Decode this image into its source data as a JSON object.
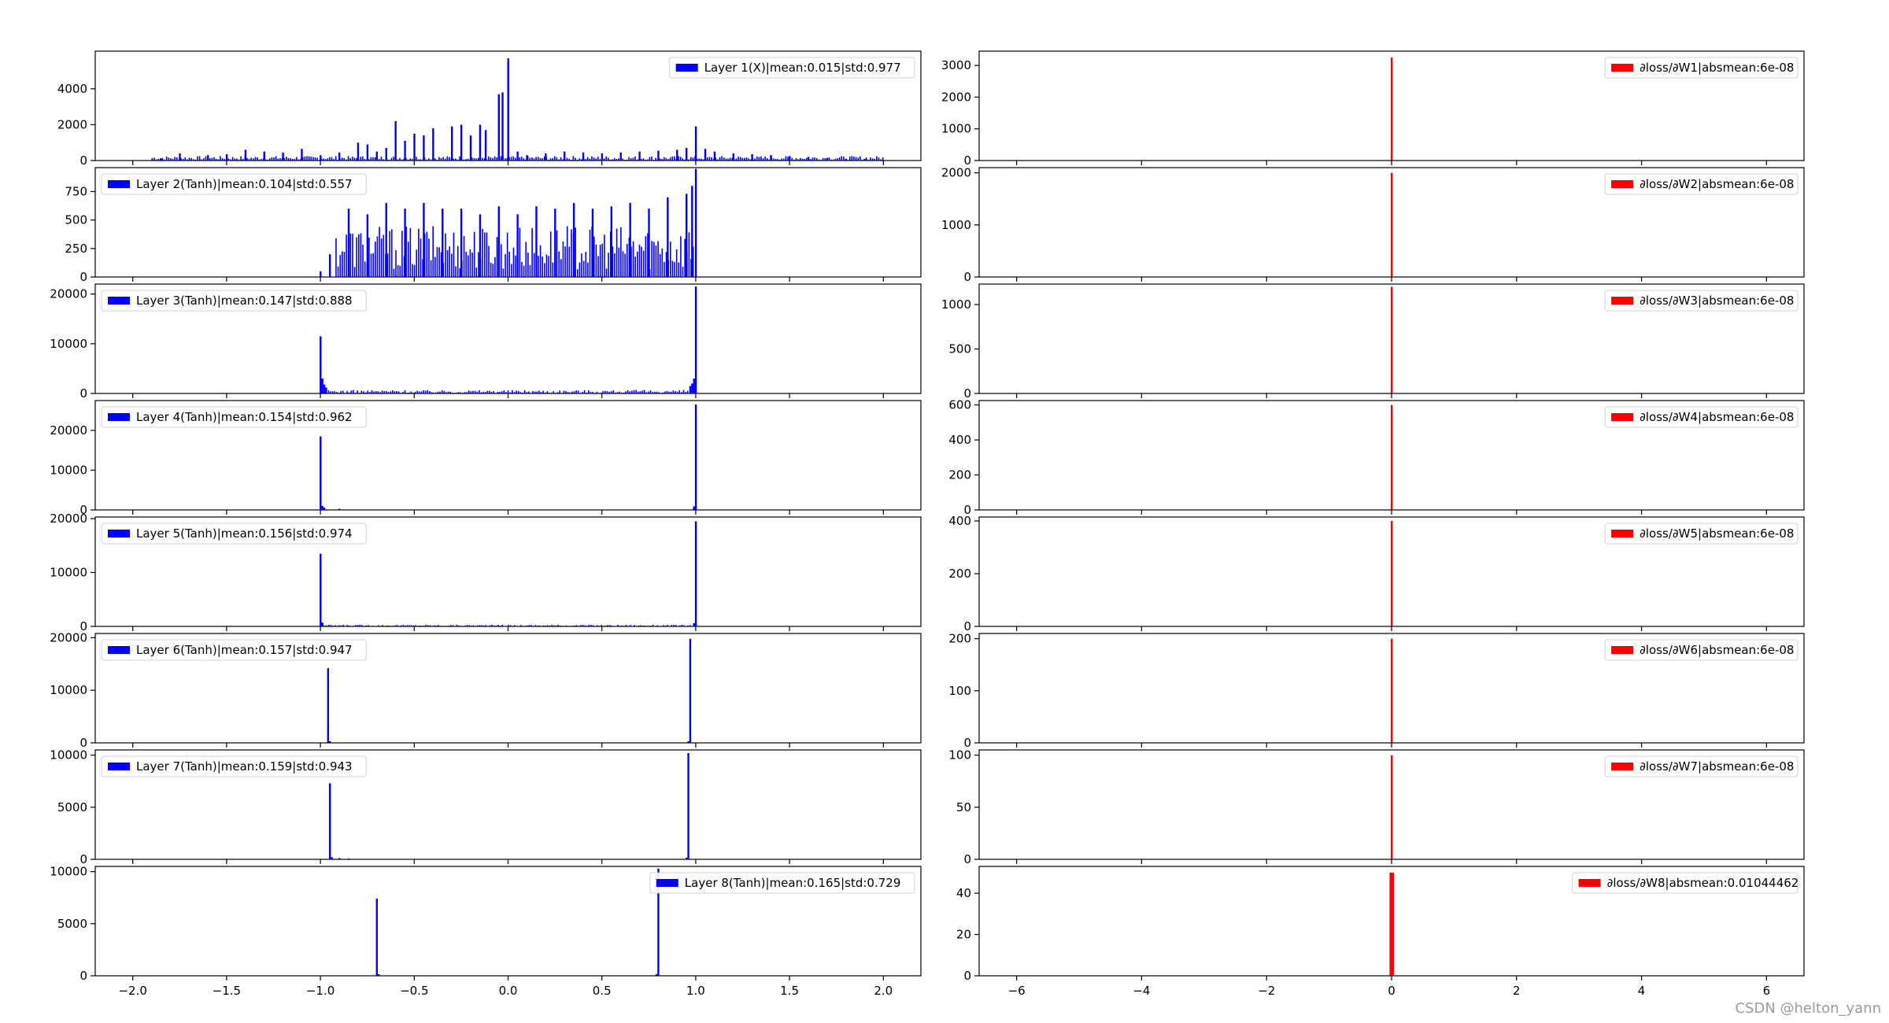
{
  "watermark": "CSDN @helton_yann",
  "colors": {
    "activation": "#0000ff",
    "gradient": "#ff0000",
    "axes": "#000000",
    "legend_border": "#cccccc"
  },
  "chart_data": [
    {
      "type": "bar",
      "panel": "left",
      "row": 0,
      "legend": "Layer 1(X)|mean:0.015|std:0.977",
      "legend_loc": "upper right",
      "xlim": [
        -2.2,
        2.2
      ],
      "ylim": [
        0,
        6100
      ],
      "yticks": [
        0,
        2000,
        4000
      ],
      "spikes": [
        [
          -1.85,
          100
        ],
        [
          -1.75,
          400
        ],
        [
          -1.6,
          300
        ],
        [
          -1.5,
          350
        ],
        [
          -1.4,
          600
        ],
        [
          -1.3,
          500
        ],
        [
          -1.2,
          450
        ],
        [
          -1.1,
          650
        ],
        [
          -1.0,
          300
        ],
        [
          -0.9,
          450
        ],
        [
          -0.8,
          1000
        ],
        [
          -0.75,
          900
        ],
        [
          -0.7,
          500
        ],
        [
          -0.65,
          700
        ],
        [
          -0.6,
          2200
        ],
        [
          -0.55,
          1100
        ],
        [
          -0.5,
          1500
        ],
        [
          -0.45,
          1400
        ],
        [
          -0.4,
          1800
        ],
        [
          -0.3,
          1900
        ],
        [
          -0.25,
          2000
        ],
        [
          -0.2,
          1400
        ],
        [
          -0.15,
          2000
        ],
        [
          -0.12,
          1700
        ],
        [
          -0.05,
          3700
        ],
        [
          -0.03,
          3800
        ],
        [
          0.0,
          5700
        ],
        [
          0.05,
          500
        ],
        [
          0.1,
          300
        ],
        [
          0.2,
          400
        ],
        [
          0.3,
          500
        ],
        [
          0.4,
          450
        ],
        [
          0.5,
          400
        ],
        [
          0.6,
          450
        ],
        [
          0.7,
          500
        ],
        [
          0.8,
          550
        ],
        [
          0.9,
          600
        ],
        [
          0.95,
          700
        ],
        [
          1.0,
          1900
        ],
        [
          1.05,
          650
        ],
        [
          1.1,
          500
        ],
        [
          1.2,
          400
        ],
        [
          1.3,
          350
        ],
        [
          1.4,
          300
        ],
        [
          1.5,
          250
        ],
        [
          1.6,
          200
        ],
        [
          1.7,
          150
        ],
        [
          1.8,
          100
        ],
        [
          1.9,
          80
        ]
      ],
      "noise": {
        "from": -1.9,
        "to": 2.0,
        "level": 250
      }
    },
    {
      "type": "bar",
      "panel": "left",
      "row": 1,
      "legend": "Layer 2(Tanh)|mean:0.104|std:0.557",
      "legend_loc": "upper left",
      "xlim": [
        -2.2,
        2.2
      ],
      "ylim": [
        0,
        960
      ],
      "yticks": [
        0,
        250,
        500,
        750
      ],
      "spikes": [
        [
          -1.0,
          50
        ],
        [
          -0.95,
          200
        ],
        [
          -0.85,
          600
        ],
        [
          -0.75,
          550
        ],
        [
          -0.65,
          650
        ],
        [
          -0.55,
          600
        ],
        [
          -0.45,
          650
        ],
        [
          -0.35,
          600
        ],
        [
          -0.25,
          600
        ],
        [
          -0.15,
          550
        ],
        [
          -0.05,
          620
        ],
        [
          0.05,
          550
        ],
        [
          0.15,
          620
        ],
        [
          0.25,
          600
        ],
        [
          0.35,
          650
        ],
        [
          0.45,
          600
        ],
        [
          0.55,
          620
        ],
        [
          0.65,
          650
        ],
        [
          0.75,
          600
        ],
        [
          0.85,
          700
        ],
        [
          0.95,
          730
        ],
        [
          0.98,
          800
        ],
        [
          1.0,
          950
        ]
      ],
      "noise": {
        "from": -0.92,
        "to": 0.99,
        "level": 450
      }
    },
    {
      "type": "bar",
      "panel": "left",
      "row": 2,
      "legend": "Layer 3(Tanh)|mean:0.147|std:0.888",
      "legend_loc": "upper left",
      "xlim": [
        -2.2,
        2.2
      ],
      "ylim": [
        0,
        22000
      ],
      "yticks": [
        0,
        10000,
        20000
      ],
      "spikes": [
        [
          -1.0,
          11500
        ],
        [
          -0.99,
          3000
        ],
        [
          -0.98,
          1800
        ],
        [
          -0.97,
          1200
        ],
        [
          0.97,
          1500
        ],
        [
          0.98,
          2000
        ],
        [
          0.99,
          3000
        ],
        [
          1.0,
          21500
        ]
      ],
      "noise": {
        "from": -0.96,
        "to": 0.96,
        "level": 700
      }
    },
    {
      "type": "bar",
      "panel": "left",
      "row": 3,
      "legend": "Layer 4(Tanh)|mean:0.154|std:0.962",
      "legend_loc": "upper left",
      "xlim": [
        -2.2,
        2.2
      ],
      "ylim": [
        0,
        27500
      ],
      "yticks": [
        0,
        10000,
        20000
      ],
      "spikes": [
        [
          -1.0,
          18500
        ],
        [
          -0.99,
          1000
        ],
        [
          -0.98,
          600
        ],
        [
          -0.9,
          300
        ],
        [
          0.99,
          900
        ],
        [
          1.0,
          26500
        ]
      ],
      "noise": {
        "from": -0.98,
        "to": 0.98,
        "level": 60
      }
    },
    {
      "type": "bar",
      "panel": "left",
      "row": 4,
      "legend": "Layer 5(Tanh)|mean:0.156|std:0.974",
      "legend_loc": "upper left",
      "xlim": [
        -2.2,
        2.2
      ],
      "ylim": [
        0,
        20300
      ],
      "yticks": [
        0,
        10000,
        20000
      ],
      "spikes": [
        [
          -1.0,
          13500
        ],
        [
          -0.99,
          700
        ],
        [
          0.99,
          600
        ],
        [
          1.0,
          19500
        ]
      ],
      "noise": {
        "from": -0.98,
        "to": 0.98,
        "level": 300
      }
    },
    {
      "type": "bar",
      "panel": "left",
      "row": 5,
      "legend": "Layer 6(Tanh)|mean:0.157|std:0.947",
      "legend_loc": "upper left",
      "xlim": [
        -2.2,
        2.2
      ],
      "ylim": [
        0,
        20800
      ],
      "yticks": [
        0,
        10000,
        20000
      ],
      "spikes": [
        [
          -0.96,
          14200
        ],
        [
          -0.95,
          300
        ],
        [
          0.96,
          300
        ],
        [
          0.97,
          19800
        ]
      ],
      "noise": {
        "from": -0.94,
        "to": 0.94,
        "level": 30
      }
    },
    {
      "type": "bar",
      "panel": "left",
      "row": 6,
      "legend": "Layer 7(Tanh)|mean:0.159|std:0.943",
      "legend_loc": "upper left",
      "xlim": [
        -2.2,
        2.2
      ],
      "ylim": [
        0,
        10500
      ],
      "yticks": [
        0,
        5000,
        10000
      ],
      "spikes": [
        [
          -0.95,
          7300
        ],
        [
          -0.94,
          200
        ],
        [
          -0.9,
          120
        ],
        [
          -0.85,
          80
        ],
        [
          0.95,
          150
        ],
        [
          0.96,
          10200
        ]
      ],
      "noise": {
        "from": -0.92,
        "to": 0.9,
        "level": 40
      }
    },
    {
      "type": "bar",
      "panel": "left",
      "row": 7,
      "legend": "Layer 8(Tanh)|mean:0.165|std:0.729",
      "legend_loc": "upper right",
      "xlim": [
        -2.2,
        2.2
      ],
      "ylim": [
        0,
        10500
      ],
      "yticks": [
        0,
        5000,
        10000
      ],
      "xticks": [
        -2.0,
        -1.5,
        -1.0,
        -0.5,
        0.0,
        0.5,
        1.0,
        1.5,
        2.0
      ],
      "xticklabels": [
        "−2.0",
        "−1.5",
        "−1.0",
        "−0.5",
        "0.0",
        "0.5",
        "1.0",
        "1.5",
        "2.0"
      ],
      "spikes": [
        [
          -0.7,
          7400
        ],
        [
          -0.69,
          150
        ],
        [
          0.79,
          150
        ],
        [
          0.8,
          10300
        ]
      ],
      "noise": null
    },
    {
      "type": "bar",
      "panel": "right",
      "row": 0,
      "legend": "∂loss/∂W1|absmean:6e-08",
      "legend_loc": "upper right",
      "xlim": [
        -6.6,
        6.6
      ],
      "ylim": [
        0,
        3450
      ],
      "yticks": [
        0,
        1000,
        2000,
        3000
      ],
      "spikes": [
        [
          0,
          3250
        ]
      ],
      "noise": null
    },
    {
      "type": "bar",
      "panel": "right",
      "row": 1,
      "legend": "∂loss/∂W2|absmean:6e-08",
      "legend_loc": "upper right",
      "xlim": [
        -6.6,
        6.6
      ],
      "ylim": [
        0,
        2100
      ],
      "yticks": [
        0,
        1000,
        2000
      ],
      "spikes": [
        [
          0,
          2000
        ]
      ],
      "noise": null
    },
    {
      "type": "bar",
      "panel": "right",
      "row": 2,
      "legend": "∂loss/∂W3|absmean:6e-08",
      "legend_loc": "upper right",
      "xlim": [
        -6.6,
        6.6
      ],
      "ylim": [
        0,
        1230
      ],
      "yticks": [
        0,
        500,
        1000
      ],
      "spikes": [
        [
          0,
          1200
        ]
      ],
      "noise": null
    },
    {
      "type": "bar",
      "panel": "right",
      "row": 3,
      "legend": "∂loss/∂W4|absmean:6e-08",
      "legend_loc": "upper right",
      "xlim": [
        -6.6,
        6.6
      ],
      "ylim": [
        0,
        625
      ],
      "yticks": [
        0,
        200,
        400,
        600
      ],
      "spikes": [
        [
          0,
          600
        ]
      ],
      "noise": null
    },
    {
      "type": "bar",
      "panel": "right",
      "row": 4,
      "legend": "∂loss/∂W5|absmean:6e-08",
      "legend_loc": "upper right",
      "xlim": [
        -6.6,
        6.6
      ],
      "ylim": [
        0,
        415
      ],
      "yticks": [
        0,
        200,
        400
      ],
      "spikes": [
        [
          0,
          400
        ]
      ],
      "noise": null
    },
    {
      "type": "bar",
      "panel": "right",
      "row": 5,
      "legend": "∂loss/∂W6|absmean:6e-08",
      "legend_loc": "upper right",
      "xlim": [
        -6.6,
        6.6
      ],
      "ylim": [
        0,
        210
      ],
      "yticks": [
        0,
        100,
        200
      ],
      "spikes": [
        [
          0,
          200
        ]
      ],
      "noise": null
    },
    {
      "type": "bar",
      "panel": "right",
      "row": 6,
      "legend": "∂loss/∂W7|absmean:6e-08",
      "legend_loc": "upper right",
      "xlim": [
        -6.6,
        6.6
      ],
      "ylim": [
        0,
        105
      ],
      "yticks": [
        0,
        50,
        100
      ],
      "spikes": [
        [
          0,
          100
        ]
      ],
      "noise": null
    },
    {
      "type": "bar",
      "panel": "right",
      "row": 7,
      "legend": "∂loss/∂W8|absmean:0.01044462",
      "legend_loc": "upper right",
      "xlim": [
        -6.6,
        6.6
      ],
      "ylim": [
        0,
        53
      ],
      "yticks": [
        0,
        20,
        40
      ],
      "xticks": [
        -6,
        -4,
        -2,
        0,
        2,
        4,
        6
      ],
      "xticklabels": [
        "−6",
        "−4",
        "−2",
        "0",
        "2",
        "4",
        "6"
      ],
      "spikes": [
        [
          -0.02,
          50
        ],
        [
          0,
          50
        ],
        [
          0.02,
          50
        ]
      ],
      "noise": null
    }
  ]
}
